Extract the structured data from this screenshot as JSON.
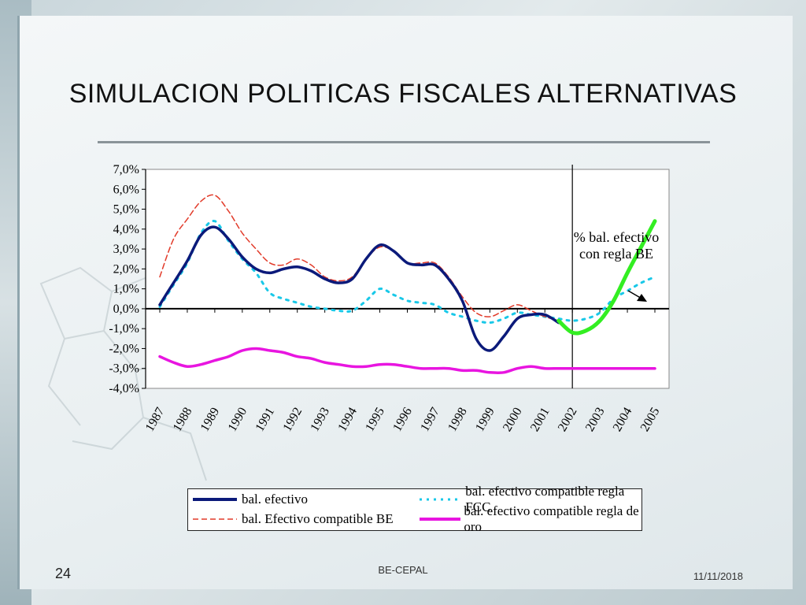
{
  "slide": {
    "title": "SIMULACION POLITICAS FISCALES ALTERNATIVAS",
    "page_number": "24",
    "footer_center": "BE-CEPAL",
    "footer_date": "11/11/2018"
  },
  "colors": {
    "bal_efectivo": "#0b1a7a",
    "bal_be": "#e23b2a",
    "bal_fcc": "#19c8e8",
    "bal_oro": "#e815e0",
    "bal_regla_be": "#33ee22"
  },
  "chart_data": {
    "type": "line",
    "title": "",
    "xlabel": "",
    "ylabel": "",
    "categories": [
      "1987",
      "1988",
      "1989",
      "1990",
      "1991",
      "1992",
      "1993",
      "1994",
      "1995",
      "1996",
      "1997",
      "1998",
      "1999",
      "2000",
      "2001",
      "2002",
      "2003",
      "2004",
      "2005"
    ],
    "y_ticks": [
      "7,0%",
      "6,0%",
      "5,0%",
      "4,0%",
      "3,0%",
      "2,0%",
      "1,0%",
      "0,0%",
      "-1,0%",
      "-2,0%",
      "-3,0%",
      "-4,0%"
    ],
    "ylim": [
      -4.0,
      7.0
    ],
    "vertical_marker_at": "2002",
    "annotation": {
      "text_lines": [
        "% bal. efectivo",
        "con regla BE"
      ],
      "arrow": true
    },
    "series": [
      {
        "key": "bal_efectivo",
        "name": "bal. efectivo",
        "style": "solid",
        "x": [
          1987,
          1987.5,
          1988,
          1988.5,
          1989,
          1989.5,
          1990,
          1990.5,
          1991,
          1991.5,
          1992,
          1992.5,
          1993,
          1993.5,
          1994,
          1994.5,
          1995,
          1995.5,
          1996,
          1996.5,
          1997,
          1997.5,
          1998,
          1998.5,
          1999,
          1999.5,
          2000,
          2000.5,
          2001,
          2001.5
        ],
        "values": [
          0.2,
          1.3,
          2.4,
          3.7,
          4.1,
          3.5,
          2.6,
          2.0,
          1.8,
          2.0,
          2.1,
          1.9,
          1.5,
          1.3,
          1.5,
          2.5,
          3.2,
          2.9,
          2.3,
          2.2,
          2.2,
          1.5,
          0.4,
          -1.5,
          -2.1,
          -1.4,
          -0.5,
          -0.3,
          -0.3,
          -0.7
        ]
      },
      {
        "key": "bal_fcc",
        "name": "bal. efectivo compatible regla FCC",
        "style": "dotted",
        "x": [
          1987,
          1987.5,
          1988,
          1988.5,
          1989,
          1989.5,
          1990,
          1990.5,
          1991,
          1991.5,
          1992,
          1992.5,
          1993,
          1993.5,
          1994,
          1994.5,
          1995,
          1995.5,
          1996,
          1996.5,
          1997,
          1997.5,
          1998,
          1998.5,
          1999,
          1999.5,
          2000,
          2000.5,
          2001,
          2001.5,
          2002,
          2002.5,
          2003,
          2003.5,
          2004,
          2004.5,
          2005
        ],
        "values": [
          0.1,
          1.2,
          2.3,
          3.8,
          4.4,
          3.4,
          2.5,
          1.8,
          0.8,
          0.5,
          0.3,
          0.1,
          0.0,
          -0.1,
          -0.1,
          0.4,
          1.0,
          0.7,
          0.4,
          0.3,
          0.2,
          -0.2,
          -0.4,
          -0.6,
          -0.7,
          -0.5,
          -0.2,
          -0.3,
          -0.4,
          -0.5,
          -0.6,
          -0.5,
          -0.2,
          0.5,
          0.9,
          1.3,
          1.6
        ]
      },
      {
        "key": "bal_be",
        "name": "bal. Efectivo compatible BE",
        "style": "dashed",
        "x": [
          1987,
          1987.5,
          1988,
          1988.5,
          1989,
          1989.5,
          1990,
          1990.5,
          1991,
          1991.5,
          1992,
          1992.5,
          1993,
          1993.5,
          1994,
          1994.5,
          1995,
          1995.5,
          1996,
          1996.5,
          1997,
          1997.5,
          1998,
          1998.5,
          1999,
          1999.5,
          2000,
          2000.5,
          2001,
          2001.5
        ],
        "values": [
          1.6,
          3.5,
          4.5,
          5.4,
          5.7,
          4.9,
          3.8,
          3.0,
          2.3,
          2.2,
          2.5,
          2.2,
          1.6,
          1.4,
          1.6,
          2.5,
          3.1,
          2.9,
          2.3,
          2.3,
          2.3,
          1.6,
          0.6,
          -0.2,
          -0.4,
          -0.1,
          0.2,
          -0.1,
          -0.4,
          -0.6
        ]
      },
      {
        "key": "bal_oro",
        "name": "bal. efectivo compatible regla de oro",
        "style": "solid",
        "x": [
          1987,
          1987.5,
          1988,
          1988.5,
          1989,
          1989.5,
          1990,
          1990.5,
          1991,
          1991.5,
          1992,
          1992.5,
          1993,
          1993.5,
          1994,
          1994.5,
          1995,
          1995.5,
          1996,
          1996.5,
          1997,
          1997.5,
          1998,
          1998.5,
          1999,
          1999.5,
          2000,
          2000.5,
          2001,
          2001.5,
          2002,
          2002.5,
          2003,
          2003.5,
          2004,
          2004.5,
          2005
        ],
        "values": [
          -2.4,
          -2.7,
          -2.9,
          -2.8,
          -2.6,
          -2.4,
          -2.1,
          -2.0,
          -2.1,
          -2.2,
          -2.4,
          -2.5,
          -2.7,
          -2.8,
          -2.9,
          -2.9,
          -2.8,
          -2.8,
          -2.9,
          -3.0,
          -3.0,
          -3.0,
          -3.1,
          -3.1,
          -3.2,
          -3.2,
          -3.0,
          -2.9,
          -3.0,
          -3.0,
          -3.0,
          -3.0,
          -3.0,
          -3.0,
          -3.0,
          -3.0,
          -3.0
        ]
      },
      {
        "key": "bal_regla_be",
        "name": "% bal. efectivo con regla BE",
        "style": "solid",
        "x": [
          2001.5,
          2002,
          2002.5,
          2003,
          2003.5,
          2004,
          2004.5,
          2005
        ],
        "values": [
          -0.6,
          -1.2,
          -1.1,
          -0.6,
          0.4,
          1.8,
          3.1,
          4.4
        ]
      }
    ]
  },
  "legend": {
    "items": [
      {
        "key": "bal_efectivo",
        "label": "bal. efectivo"
      },
      {
        "key": "bal_fcc",
        "label": "bal. efectivo compatible regla FCC"
      },
      {
        "key": "bal_be",
        "label": "bal. Efectivo compatible BE"
      },
      {
        "key": "bal_oro",
        "label": "bal. efectivo compatible regla de oro"
      }
    ]
  }
}
